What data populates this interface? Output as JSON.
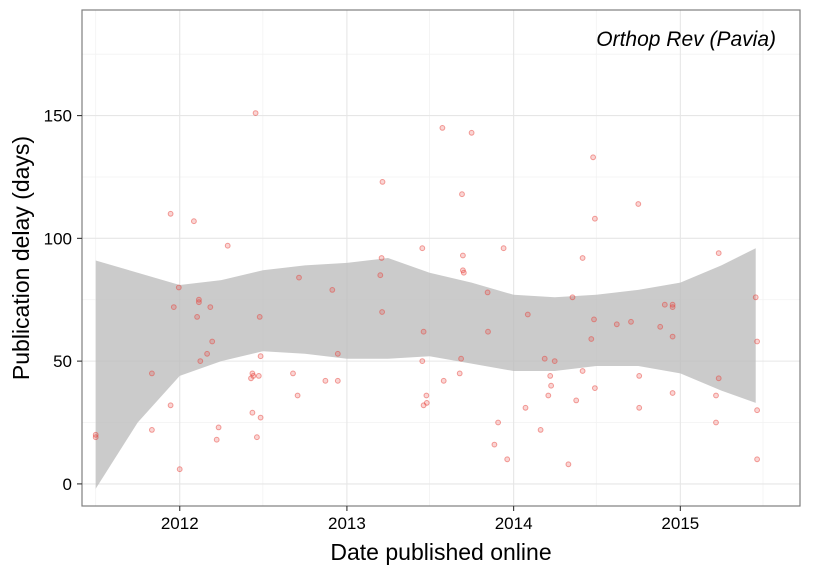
{
  "chart_data": {
    "type": "scatter",
    "annotation": "Orthop Rev (Pavia)",
    "xlabel": "Date published online",
    "ylabel": "Publication delay (days)",
    "x_ticks": [
      "2012",
      "2013",
      "2014",
      "2015"
    ],
    "y_ticks": [
      0,
      50,
      100,
      150
    ],
    "xlim": [
      "2011-06-01",
      "2015-09-20"
    ],
    "ylim": [
      -9,
      193
    ],
    "grid": true,
    "colors": {
      "points": "#e8413a",
      "band": "#bdbdbd"
    },
    "series": [
      {
        "points": [
          [
            "2011-07-01",
            20
          ],
          [
            "2011-07-01",
            19
          ],
          [
            "2011-11-01",
            45
          ],
          [
            "2011-11-01",
            22
          ],
          [
            "2011-12-12",
            110
          ],
          [
            "2011-12-12",
            32
          ],
          [
            "2011-12-19",
            72
          ],
          [
            "2011-12-30",
            80
          ],
          [
            "2012-01-01",
            6
          ],
          [
            "2012-02-01",
            107
          ],
          [
            "2012-02-08",
            68
          ],
          [
            "2012-02-12",
            75
          ],
          [
            "2012-02-12",
            74
          ],
          [
            "2012-02-15",
            50
          ],
          [
            "2012-03-01",
            53
          ],
          [
            "2012-03-08",
            72
          ],
          [
            "2012-03-12",
            58
          ],
          [
            "2012-03-22",
            18
          ],
          [
            "2012-03-26",
            23
          ],
          [
            "2012-04-15",
            97
          ],
          [
            "2012-06-05",
            43
          ],
          [
            "2012-06-08",
            45
          ],
          [
            "2012-06-08",
            29
          ],
          [
            "2012-06-10",
            44
          ],
          [
            "2012-06-15",
            151
          ],
          [
            "2012-06-18",
            19
          ],
          [
            "2012-06-22",
            44
          ],
          [
            "2012-06-24",
            68
          ],
          [
            "2012-06-26",
            52
          ],
          [
            "2012-06-26",
            27
          ],
          [
            "2012-09-05",
            45
          ],
          [
            "2012-09-15",
            36
          ],
          [
            "2012-09-18",
            84
          ],
          [
            "2012-11-15",
            42
          ],
          [
            "2012-11-30",
            79
          ],
          [
            "2012-12-12",
            53
          ],
          [
            "2012-12-12",
            42
          ],
          [
            "2013-03-15",
            85
          ],
          [
            "2013-03-18",
            92
          ],
          [
            "2013-03-19",
            70
          ],
          [
            "2013-03-20",
            123
          ],
          [
            "2013-06-15",
            96
          ],
          [
            "2013-06-15",
            50
          ],
          [
            "2013-06-18",
            62
          ],
          [
            "2013-06-18",
            32
          ],
          [
            "2013-06-24",
            36
          ],
          [
            "2013-06-25",
            33
          ],
          [
            "2013-07-29",
            145
          ],
          [
            "2013-08-01",
            42
          ],
          [
            "2013-09-05",
            45
          ],
          [
            "2013-09-08",
            51
          ],
          [
            "2013-09-10",
            118
          ],
          [
            "2013-09-12",
            93
          ],
          [
            "2013-09-12",
            87
          ],
          [
            "2013-09-14",
            86
          ],
          [
            "2013-10-01",
            143
          ],
          [
            "2013-11-05",
            78
          ],
          [
            "2013-11-06",
            62
          ],
          [
            "2013-11-20",
            16
          ],
          [
            "2013-11-28",
            25
          ],
          [
            "2013-12-10",
            96
          ],
          [
            "2013-12-18",
            10
          ],
          [
            "2014-01-27",
            31
          ],
          [
            "2014-02-01",
            69
          ],
          [
            "2014-03-01",
            22
          ],
          [
            "2014-03-10",
            51
          ],
          [
            "2014-03-18",
            36
          ],
          [
            "2014-03-22",
            44
          ],
          [
            "2014-03-24",
            40
          ],
          [
            "2014-04-01",
            50
          ],
          [
            "2014-05-01",
            8
          ],
          [
            "2014-05-10",
            76
          ],
          [
            "2014-05-18",
            34
          ],
          [
            "2014-06-01",
            92
          ],
          [
            "2014-06-01",
            46
          ],
          [
            "2014-06-20",
            59
          ],
          [
            "2014-06-24",
            133
          ],
          [
            "2014-06-26",
            67
          ],
          [
            "2014-06-28",
            108
          ],
          [
            "2014-06-28",
            39
          ],
          [
            "2014-08-15",
            65
          ],
          [
            "2014-09-15",
            66
          ],
          [
            "2014-10-01",
            114
          ],
          [
            "2014-10-03",
            44
          ],
          [
            "2014-10-03",
            31
          ],
          [
            "2014-11-18",
            64
          ],
          [
            "2014-11-28",
            73
          ],
          [
            "2014-12-15",
            73
          ],
          [
            "2014-12-15",
            72
          ],
          [
            "2014-12-15",
            60
          ],
          [
            "2014-12-15",
            37
          ],
          [
            "2015-03-20",
            36
          ],
          [
            "2015-03-20",
            25
          ],
          [
            "2015-03-26",
            94
          ],
          [
            "2015-03-26",
            43
          ],
          [
            "2015-06-15",
            76
          ],
          [
            "2015-06-18",
            58
          ],
          [
            "2015-06-18",
            30
          ],
          [
            "2015-06-18",
            10
          ]
        ]
      }
    ],
    "smooth_band": {
      "x": [
        "2011-07-01",
        "2011-10-01",
        "2012-01-01",
        "2012-04-01",
        "2012-07-01",
        "2012-10-01",
        "2013-01-01",
        "2013-04-01",
        "2013-07-01",
        "2013-10-01",
        "2014-01-01",
        "2014-04-01",
        "2014-07-01",
        "2014-10-01",
        "2015-01-01",
        "2015-04-01",
        "2015-06-15"
      ],
      "upper": [
        91,
        86,
        81,
        83,
        87,
        89,
        90,
        92,
        86,
        82,
        77,
        76,
        77,
        79,
        82,
        89,
        96
      ],
      "lower": [
        -2,
        25,
        44,
        50,
        54,
        53,
        51,
        51,
        52,
        49,
        46,
        46,
        48,
        48,
        45,
        38,
        33
      ]
    }
  }
}
